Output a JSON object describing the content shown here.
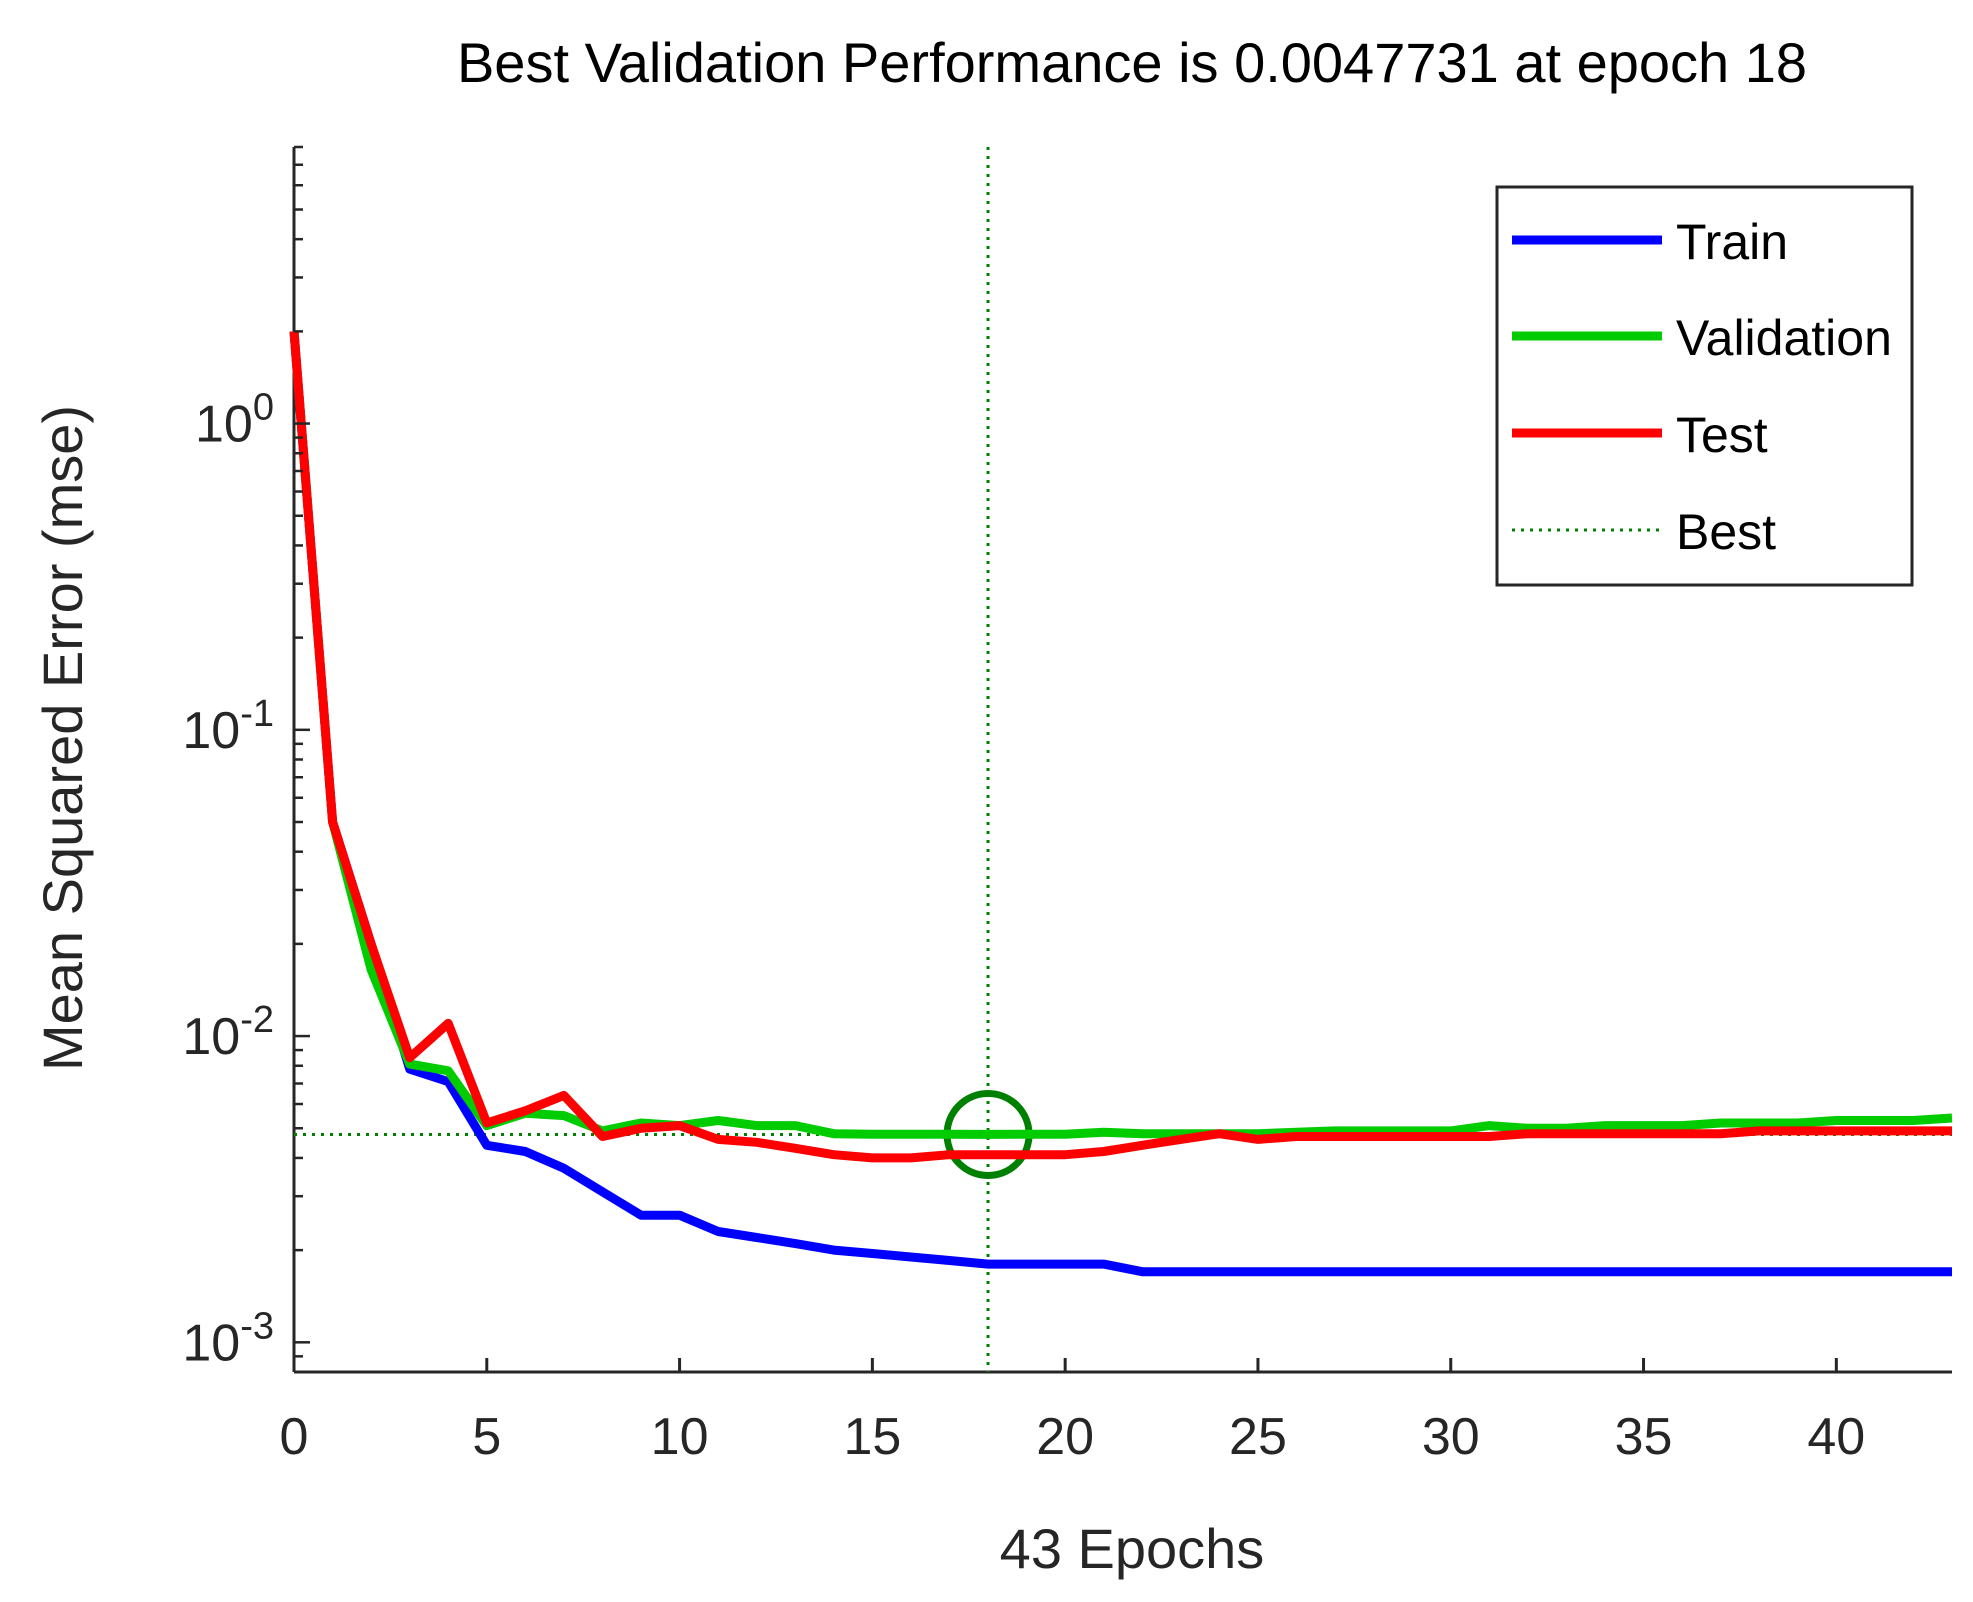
{
  "chart_data": {
    "type": "line",
    "title": "Best Validation Performance is 0.0047731 at epoch 18",
    "xlabel": "43 Epochs",
    "ylabel": "Mean Squared Error  (mse)",
    "xlim": [
      0,
      43
    ],
    "ylim": [
      0.0008,
      8
    ],
    "yscale": "log",
    "xticks": [
      0,
      5,
      10,
      15,
      20,
      25,
      30,
      35,
      40
    ],
    "xtick_labels": [
      "0",
      "5",
      "10",
      "15",
      "20",
      "25",
      "30",
      "35",
      "40"
    ],
    "yticks": [
      {
        "value": 1,
        "base": "10",
        "exp": "0"
      },
      {
        "value": 0.1,
        "base": "10",
        "exp": "-1"
      },
      {
        "value": 0.01,
        "base": "10",
        "exp": "-2"
      },
      {
        "value": 0.001,
        "base": "10",
        "exp": "-3"
      }
    ],
    "x": [
      0,
      1,
      2,
      3,
      4,
      5,
      6,
      7,
      8,
      9,
      10,
      11,
      12,
      13,
      14,
      15,
      16,
      17,
      18,
      19,
      20,
      21,
      22,
      23,
      24,
      25,
      26,
      27,
      28,
      29,
      30,
      31,
      32,
      33,
      34,
      35,
      36,
      37,
      38,
      39,
      40,
      41,
      42,
      43
    ],
    "series": [
      {
        "name": "Train",
        "color": "#0000ff",
        "values": [
          2.0,
          0.05,
          0.02,
          0.0078,
          0.0071,
          0.0044,
          0.0042,
          0.0037,
          0.0031,
          0.0026,
          0.0026,
          0.0023,
          0.0022,
          0.0021,
          0.002,
          0.00195,
          0.0019,
          0.00185,
          0.0018,
          0.0018,
          0.0018,
          0.0018,
          0.0017,
          0.0017,
          0.0017,
          0.0017,
          0.0017,
          0.0017,
          0.0017,
          0.0017,
          0.0017,
          0.0017,
          0.0017,
          0.0017,
          0.0017,
          0.0017,
          0.0017,
          0.0017,
          0.0017,
          0.0017,
          0.0017,
          0.0017,
          0.0017,
          0.0017
        ]
      },
      {
        "name": "Validation",
        "color": "#00cc00",
        "values": [
          2.0,
          0.05,
          0.0165,
          0.0081,
          0.0077,
          0.0051,
          0.0056,
          0.0055,
          0.0049,
          0.0052,
          0.0051,
          0.0053,
          0.0051,
          0.0051,
          0.0048,
          0.00478,
          0.00478,
          0.00478,
          0.0047731,
          0.00478,
          0.00478,
          0.00485,
          0.0048,
          0.0048,
          0.0048,
          0.0048,
          0.00485,
          0.0049,
          0.0049,
          0.0049,
          0.0049,
          0.0051,
          0.005,
          0.005,
          0.0051,
          0.0051,
          0.0051,
          0.0052,
          0.0052,
          0.0052,
          0.0053,
          0.0053,
          0.0053,
          0.0054
        ]
      },
      {
        "name": "Test",
        "color": "#ff0000",
        "values": [
          2.0,
          0.05,
          0.02,
          0.0085,
          0.011,
          0.0052,
          0.0057,
          0.0064,
          0.0047,
          0.005,
          0.0051,
          0.0046,
          0.0045,
          0.0043,
          0.0041,
          0.004,
          0.004,
          0.0041,
          0.0041,
          0.0041,
          0.0041,
          0.0042,
          0.0044,
          0.0046,
          0.0048,
          0.0046,
          0.0047,
          0.0047,
          0.0047,
          0.0047,
          0.0047,
          0.0047,
          0.0048,
          0.0048,
          0.0048,
          0.0048,
          0.0048,
          0.0048,
          0.0049,
          0.0049,
          0.0049,
          0.0049,
          0.0049,
          0.0049
        ]
      }
    ],
    "best": {
      "name": "Best",
      "epoch": 18,
      "value": 0.0047731,
      "color": "#008000"
    },
    "legend": {
      "position": "top-right",
      "entries": [
        "Train",
        "Validation",
        "Test",
        "Best"
      ]
    }
  }
}
